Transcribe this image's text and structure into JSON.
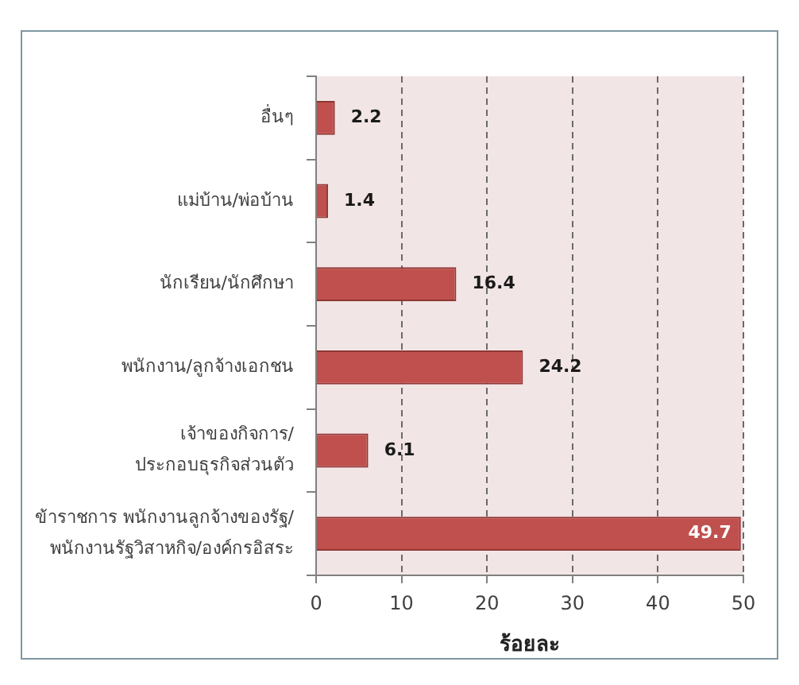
{
  "chart_data": {
    "type": "bar",
    "orientation": "horizontal",
    "categories": [
      "อื่นๆ",
      "แม่บ้าน/พ่อบ้าน",
      "นักเรียน/นักศึกษา",
      "พนักงาน/ลูกจ้างเอกชน",
      "เจ้าของกิจการ/ประกอบธุรกิจส่วนตัว",
      "ข้าราชการ พนักงานลูกจ้างของรัฐ/พนักงานรัฐวิสาหกิจ/องค์กรอิสระ"
    ],
    "values": [
      2.2,
      1.4,
      16.4,
      24.2,
      6.1,
      49.7
    ],
    "color": "#c0504d",
    "xlabel": "ร้อยละ",
    "xlim": [
      0,
      50
    ],
    "xticks": [
      0,
      10,
      20,
      30,
      40,
      50
    ],
    "grid": "x",
    "data_labels": true
  }
}
